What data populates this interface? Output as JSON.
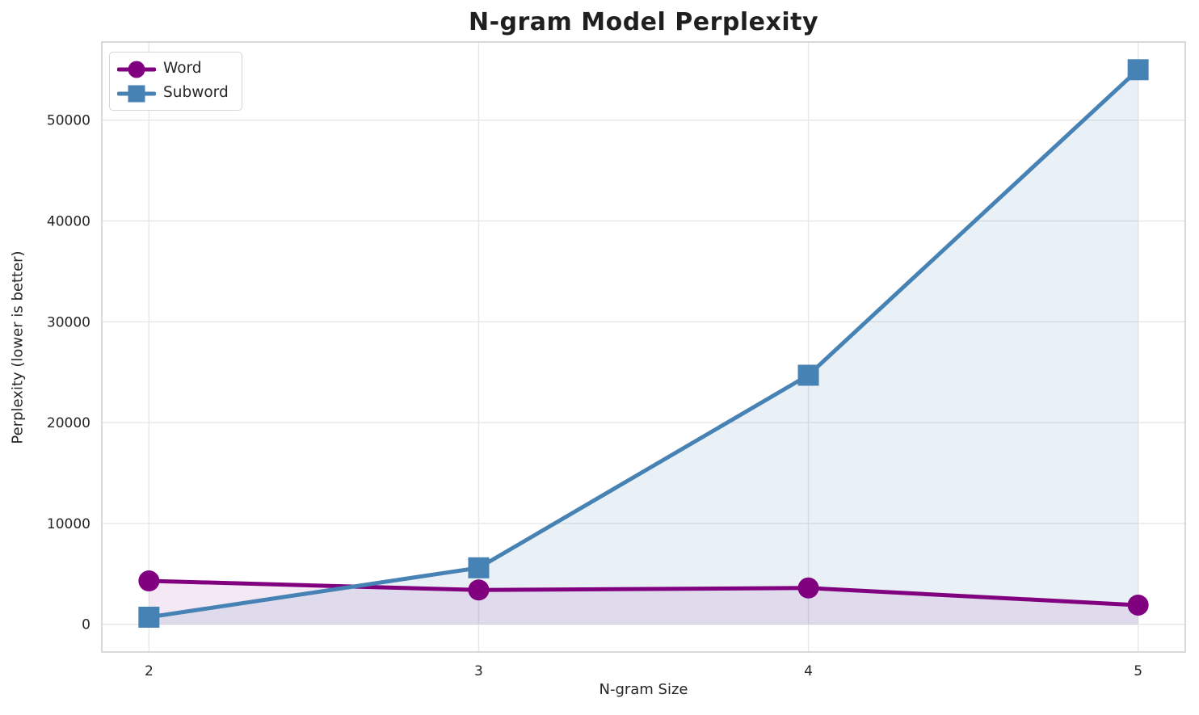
{
  "chart_data": {
    "type": "line",
    "title": "N-gram Model Perplexity",
    "xlabel": "N-gram Size",
    "ylabel": "Perplexity (lower is better)",
    "x": [
      2,
      3,
      4,
      5
    ],
    "x_ticks": [
      2,
      3,
      4,
      5
    ],
    "y_ticks": [
      0,
      10000,
      20000,
      30000,
      40000,
      50000
    ],
    "xlim": [
      1.857,
      5.143
    ],
    "ylim": [
      -2750,
      57750
    ],
    "grid": true,
    "legend_position": "upper left",
    "area_fill_to_zero": true,
    "series": [
      {
        "name": "Word",
        "marker": "circle",
        "color": "#800080",
        "fill_opacity": 0.09,
        "values": [
          4300,
          3400,
          3600,
          1900
        ]
      },
      {
        "name": "Subword",
        "marker": "square",
        "color": "#4682b4",
        "fill_opacity": 0.12,
        "values": [
          700,
          5600,
          24700,
          55000
        ]
      }
    ],
    "colors": {
      "background": "#ffffff",
      "grid": "#e7e7e7",
      "axes_edge": "#cccccc",
      "text": "#262626"
    }
  }
}
